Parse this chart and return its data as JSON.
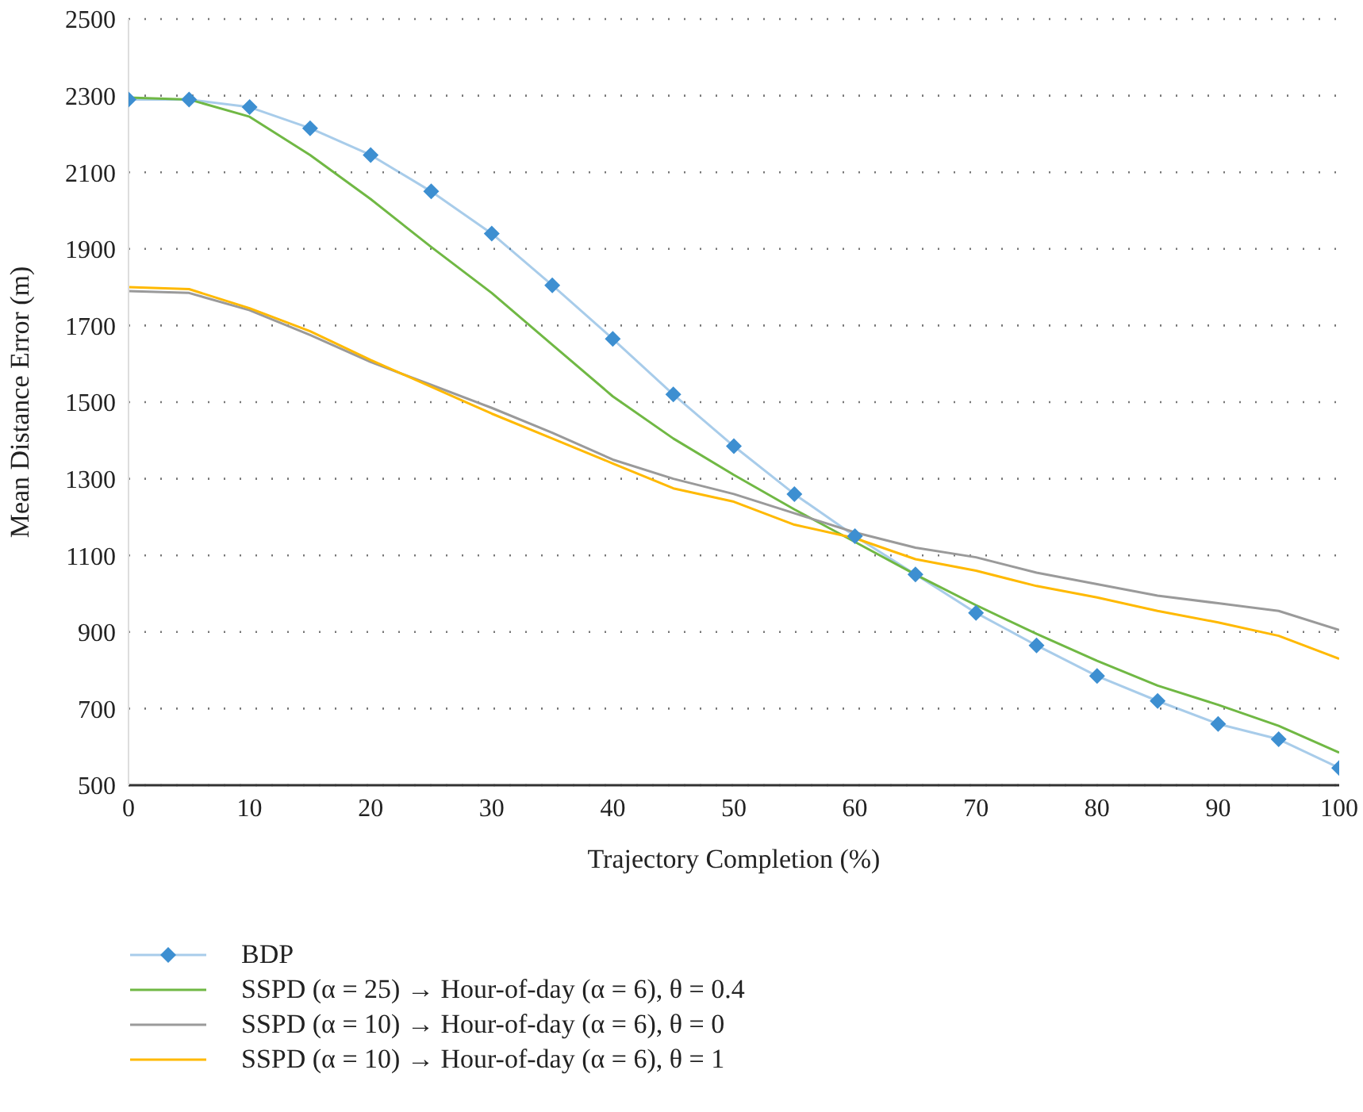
{
  "chart_data": {
    "type": "line",
    "xlabel": "Trajectory Completion (%)",
    "ylabel": "Mean Distance Error (m)",
    "x": [
      0,
      5,
      10,
      15,
      20,
      25,
      30,
      35,
      40,
      45,
      50,
      55,
      60,
      65,
      70,
      75,
      80,
      85,
      90,
      95,
      100
    ],
    "xlim": [
      0,
      100
    ],
    "xticks": [
      0,
      10,
      20,
      30,
      40,
      50,
      60,
      70,
      80,
      90,
      100
    ],
    "ylim": [
      500,
      2500
    ],
    "yticks": [
      500,
      700,
      900,
      1100,
      1300,
      1500,
      1700,
      1900,
      2100,
      2300,
      2500
    ],
    "grid": "y",
    "legend": "bottom",
    "line_style": "solid",
    "series": [
      {
        "name": "BDP",
        "color": "#3d8fd1",
        "marker": "diamond",
        "values": [
          2290,
          2290,
          2270,
          2215,
          2145,
          2050,
          1940,
          1805,
          1665,
          1520,
          1385,
          1260,
          1150,
          1050,
          950,
          865,
          785,
          720,
          660,
          620,
          545
        ]
      },
      {
        "name": "SSPD (α = 25) → Hour-of-day (α = 6), θ = 0.4",
        "color": "#70b844",
        "marker": "none",
        "values": [
          2295,
          2290,
          2245,
          2145,
          2030,
          1905,
          1785,
          1650,
          1515,
          1405,
          1310,
          1220,
          1135,
          1050,
          970,
          895,
          825,
          760,
          710,
          655,
          585
        ]
      },
      {
        "name": "SSPD (α = 10) → Hour-of-day (α = 6), θ = 0",
        "color": "#9a9a9a",
        "marker": "none",
        "values": [
          1790,
          1785,
          1740,
          1675,
          1605,
          1545,
          1485,
          1420,
          1350,
          1300,
          1260,
          1210,
          1160,
          1120,
          1095,
          1055,
          1025,
          995,
          975,
          955,
          905
        ]
      },
      {
        "name": "SSPD (α = 10) → Hour-of-day (α = 6), θ = 1",
        "color": "#ffb900",
        "marker": "none",
        "values": [
          1800,
          1795,
          1745,
          1685,
          1610,
          1540,
          1470,
          1405,
          1340,
          1275,
          1240,
          1180,
          1145,
          1090,
          1060,
          1020,
          990,
          955,
          925,
          890,
          830
        ]
      }
    ]
  }
}
